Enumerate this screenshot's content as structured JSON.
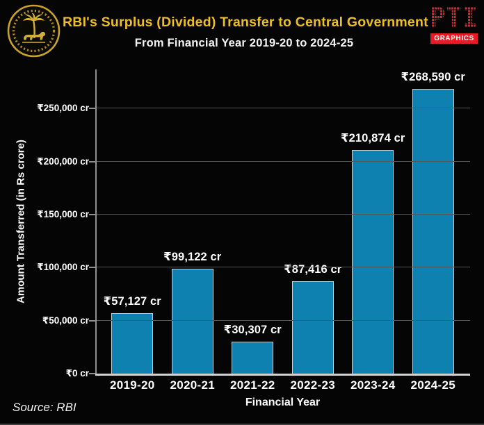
{
  "header": {
    "title": "RBI's Surplus (Divided) Transfer to Central Government",
    "subtitle": "From Financial Year 2019-20 to 2024-25",
    "title_color": "#ecbe2a",
    "pti": {
      "wordmark": "PTI",
      "badge": "GRAPHICS",
      "color": "#e81c24"
    }
  },
  "chart_data": {
    "type": "bar",
    "title": "RBI's Surplus (Divided) Transfer to Central Government",
    "subtitle": "From Financial Year 2019-20 to 2024-25",
    "categories": [
      "2019-20",
      "2020-21",
      "2021-22",
      "2022-23",
      "2023-24",
      "2024-25"
    ],
    "values": [
      57127,
      99122,
      30307,
      87416,
      210874,
      268590
    ],
    "bar_labels": [
      "₹57,127 cr",
      "₹99,122 cr",
      "₹30,307 cr",
      "₹87,416 cr",
      "₹210,874 cr",
      "₹268,590 cr"
    ],
    "xlabel": "Financial Year",
    "ylabel": "Amount Transferred (in Rs crore)",
    "ylim": [
      0,
      287000
    ],
    "yticks": [
      {
        "value": 0,
        "label": "₹0 cr"
      },
      {
        "value": 50000,
        "label": "₹50,000 cr"
      },
      {
        "value": 100000,
        "label": "₹100,000 cr"
      },
      {
        "value": 150000,
        "label": "₹150,000 cr"
      },
      {
        "value": 200000,
        "label": "₹200,000 cr"
      },
      {
        "value": 250000,
        "label": "₹250,000 cr"
      }
    ],
    "grid": "horizontal",
    "legend": "none",
    "bar_color": "#0f81b1",
    "bar_border_color": "#c3ced5",
    "background_color": "#050505"
  },
  "footer": {
    "source": "Source: RBI"
  }
}
